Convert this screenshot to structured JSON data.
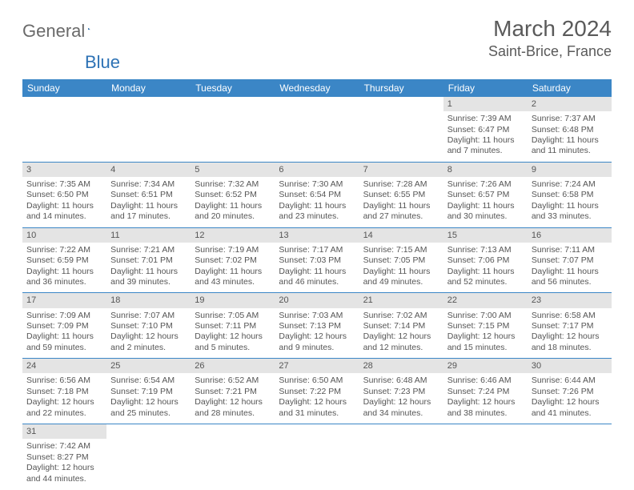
{
  "logo": {
    "general": "General",
    "blue": "Blue"
  },
  "title": "March 2024",
  "location": "Saint-Brice, France",
  "colors": {
    "header_bg": "#3b86c6",
    "header_text": "#ffffff",
    "daynum_bg": "#e4e4e4",
    "row_border": "#3b86c6",
    "text": "#555555",
    "logo_gray": "#6a6a6a",
    "logo_blue": "#2d72b5"
  },
  "daysOfWeek": [
    "Sunday",
    "Monday",
    "Tuesday",
    "Wednesday",
    "Thursday",
    "Friday",
    "Saturday"
  ],
  "grid": [
    [
      {
        "blank": true
      },
      {
        "blank": true
      },
      {
        "blank": true
      },
      {
        "blank": true
      },
      {
        "blank": true
      },
      {
        "day": "1",
        "sunrise": "Sunrise: 7:39 AM",
        "sunset": "Sunset: 6:47 PM",
        "day1": "Daylight: 11 hours",
        "day2": "and 7 minutes."
      },
      {
        "day": "2",
        "sunrise": "Sunrise: 7:37 AM",
        "sunset": "Sunset: 6:48 PM",
        "day1": "Daylight: 11 hours",
        "day2": "and 11 minutes."
      }
    ],
    [
      {
        "day": "3",
        "sunrise": "Sunrise: 7:35 AM",
        "sunset": "Sunset: 6:50 PM",
        "day1": "Daylight: 11 hours",
        "day2": "and 14 minutes."
      },
      {
        "day": "4",
        "sunrise": "Sunrise: 7:34 AM",
        "sunset": "Sunset: 6:51 PM",
        "day1": "Daylight: 11 hours",
        "day2": "and 17 minutes."
      },
      {
        "day": "5",
        "sunrise": "Sunrise: 7:32 AM",
        "sunset": "Sunset: 6:52 PM",
        "day1": "Daylight: 11 hours",
        "day2": "and 20 minutes."
      },
      {
        "day": "6",
        "sunrise": "Sunrise: 7:30 AM",
        "sunset": "Sunset: 6:54 PM",
        "day1": "Daylight: 11 hours",
        "day2": "and 23 minutes."
      },
      {
        "day": "7",
        "sunrise": "Sunrise: 7:28 AM",
        "sunset": "Sunset: 6:55 PM",
        "day1": "Daylight: 11 hours",
        "day2": "and 27 minutes."
      },
      {
        "day": "8",
        "sunrise": "Sunrise: 7:26 AM",
        "sunset": "Sunset: 6:57 PM",
        "day1": "Daylight: 11 hours",
        "day2": "and 30 minutes."
      },
      {
        "day": "9",
        "sunrise": "Sunrise: 7:24 AM",
        "sunset": "Sunset: 6:58 PM",
        "day1": "Daylight: 11 hours",
        "day2": "and 33 minutes."
      }
    ],
    [
      {
        "day": "10",
        "sunrise": "Sunrise: 7:22 AM",
        "sunset": "Sunset: 6:59 PM",
        "day1": "Daylight: 11 hours",
        "day2": "and 36 minutes."
      },
      {
        "day": "11",
        "sunrise": "Sunrise: 7:21 AM",
        "sunset": "Sunset: 7:01 PM",
        "day1": "Daylight: 11 hours",
        "day2": "and 39 minutes."
      },
      {
        "day": "12",
        "sunrise": "Sunrise: 7:19 AM",
        "sunset": "Sunset: 7:02 PM",
        "day1": "Daylight: 11 hours",
        "day2": "and 43 minutes."
      },
      {
        "day": "13",
        "sunrise": "Sunrise: 7:17 AM",
        "sunset": "Sunset: 7:03 PM",
        "day1": "Daylight: 11 hours",
        "day2": "and 46 minutes."
      },
      {
        "day": "14",
        "sunrise": "Sunrise: 7:15 AM",
        "sunset": "Sunset: 7:05 PM",
        "day1": "Daylight: 11 hours",
        "day2": "and 49 minutes."
      },
      {
        "day": "15",
        "sunrise": "Sunrise: 7:13 AM",
        "sunset": "Sunset: 7:06 PM",
        "day1": "Daylight: 11 hours",
        "day2": "and 52 minutes."
      },
      {
        "day": "16",
        "sunrise": "Sunrise: 7:11 AM",
        "sunset": "Sunset: 7:07 PM",
        "day1": "Daylight: 11 hours",
        "day2": "and 56 minutes."
      }
    ],
    [
      {
        "day": "17",
        "sunrise": "Sunrise: 7:09 AM",
        "sunset": "Sunset: 7:09 PM",
        "day1": "Daylight: 11 hours",
        "day2": "and 59 minutes."
      },
      {
        "day": "18",
        "sunrise": "Sunrise: 7:07 AM",
        "sunset": "Sunset: 7:10 PM",
        "day1": "Daylight: 12 hours",
        "day2": "and 2 minutes."
      },
      {
        "day": "19",
        "sunrise": "Sunrise: 7:05 AM",
        "sunset": "Sunset: 7:11 PM",
        "day1": "Daylight: 12 hours",
        "day2": "and 5 minutes."
      },
      {
        "day": "20",
        "sunrise": "Sunrise: 7:03 AM",
        "sunset": "Sunset: 7:13 PM",
        "day1": "Daylight: 12 hours",
        "day2": "and 9 minutes."
      },
      {
        "day": "21",
        "sunrise": "Sunrise: 7:02 AM",
        "sunset": "Sunset: 7:14 PM",
        "day1": "Daylight: 12 hours",
        "day2": "and 12 minutes."
      },
      {
        "day": "22",
        "sunrise": "Sunrise: 7:00 AM",
        "sunset": "Sunset: 7:15 PM",
        "day1": "Daylight: 12 hours",
        "day2": "and 15 minutes."
      },
      {
        "day": "23",
        "sunrise": "Sunrise: 6:58 AM",
        "sunset": "Sunset: 7:17 PM",
        "day1": "Daylight: 12 hours",
        "day2": "and 18 minutes."
      }
    ],
    [
      {
        "day": "24",
        "sunrise": "Sunrise: 6:56 AM",
        "sunset": "Sunset: 7:18 PM",
        "day1": "Daylight: 12 hours",
        "day2": "and 22 minutes."
      },
      {
        "day": "25",
        "sunrise": "Sunrise: 6:54 AM",
        "sunset": "Sunset: 7:19 PM",
        "day1": "Daylight: 12 hours",
        "day2": "and 25 minutes."
      },
      {
        "day": "26",
        "sunrise": "Sunrise: 6:52 AM",
        "sunset": "Sunset: 7:21 PM",
        "day1": "Daylight: 12 hours",
        "day2": "and 28 minutes."
      },
      {
        "day": "27",
        "sunrise": "Sunrise: 6:50 AM",
        "sunset": "Sunset: 7:22 PM",
        "day1": "Daylight: 12 hours",
        "day2": "and 31 minutes."
      },
      {
        "day": "28",
        "sunrise": "Sunrise: 6:48 AM",
        "sunset": "Sunset: 7:23 PM",
        "day1": "Daylight: 12 hours",
        "day2": "and 34 minutes."
      },
      {
        "day": "29",
        "sunrise": "Sunrise: 6:46 AM",
        "sunset": "Sunset: 7:24 PM",
        "day1": "Daylight: 12 hours",
        "day2": "and 38 minutes."
      },
      {
        "day": "30",
        "sunrise": "Sunrise: 6:44 AM",
        "sunset": "Sunset: 7:26 PM",
        "day1": "Daylight: 12 hours",
        "day2": "and 41 minutes."
      }
    ],
    [
      {
        "day": "31",
        "sunrise": "Sunrise: 7:42 AM",
        "sunset": "Sunset: 8:27 PM",
        "day1": "Daylight: 12 hours",
        "day2": "and 44 minutes."
      },
      {
        "blank": true
      },
      {
        "blank": true
      },
      {
        "blank": true
      },
      {
        "blank": true
      },
      {
        "blank": true
      },
      {
        "blank": true
      }
    ]
  ]
}
